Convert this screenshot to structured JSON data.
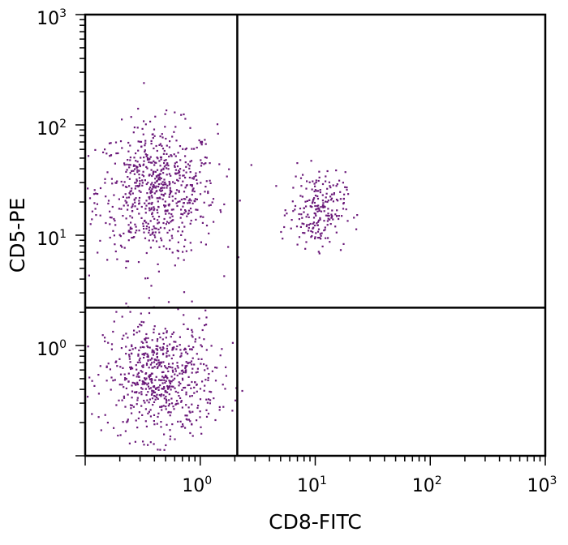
{
  "chart_data": {
    "type": "scatter",
    "title": "",
    "xlabel": "CD8-FITC",
    "ylabel": "CD5-PE",
    "x_scale": "log",
    "y_scale": "log",
    "xlim": [
      0.1,
      1000
    ],
    "ylim": [
      0.1,
      1000
    ],
    "x_ticks": [
      {
        "value": 1,
        "base": "10",
        "exp": "0"
      },
      {
        "value": 10,
        "base": "10",
        "exp": "1"
      },
      {
        "value": 100,
        "base": "10",
        "exp": "2"
      },
      {
        "value": 1000,
        "base": "10",
        "exp": "3"
      }
    ],
    "y_ticks": [
      {
        "value": 1,
        "base": "10",
        "exp": "0"
      },
      {
        "value": 10,
        "base": "10",
        "exp": "1"
      },
      {
        "value": 100,
        "base": "10",
        "exp": "2"
      },
      {
        "value": 1000,
        "base": "10",
        "exp": "3"
      }
    ],
    "quadrant_gates": {
      "x": 2.1,
      "y": 2.2
    },
    "grid": false,
    "point_color": "#6b1a7a",
    "populations": [
      {
        "center": [
          0.42,
          25
        ],
        "count": 700
      },
      {
        "center": [
          0.45,
          0.5
        ],
        "count": 650
      },
      {
        "center": [
          10.5,
          17
        ],
        "count": 220
      }
    ]
  }
}
